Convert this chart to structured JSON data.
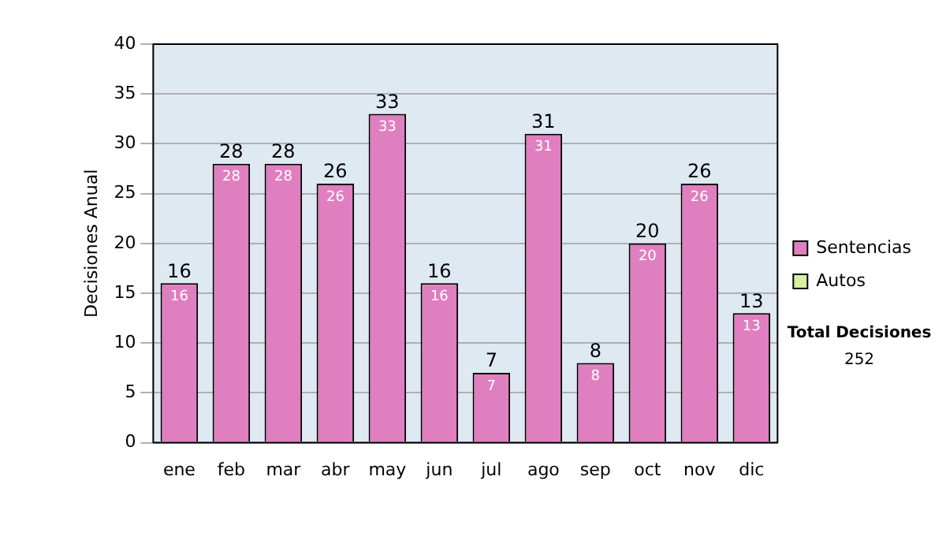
{
  "chart_data": {
    "type": "bar",
    "ylabel": "Decisiones Anual",
    "categories": [
      "ene",
      "feb",
      "mar",
      "abr",
      "may",
      "jun",
      "jul",
      "ago",
      "sep",
      "oct",
      "nov",
      "dic"
    ],
    "series": [
      {
        "name": "Sentencias",
        "color": "#e07fbf",
        "values": [
          16,
          28,
          28,
          26,
          33,
          16,
          7,
          31,
          8,
          20,
          26,
          13
        ],
        "value_labels": [
          "16",
          "28",
          "28",
          "26",
          "33",
          "16",
          "7",
          "31",
          "8",
          "20",
          "26",
          "13"
        ]
      },
      {
        "name": "Autos",
        "color": "#d8f0a0",
        "values": [
          0,
          0,
          0,
          0,
          0,
          0,
          0,
          0,
          0,
          0,
          0,
          0
        ]
      }
    ],
    "stacked": true,
    "totals": [
      "16",
      "28",
      "28",
      "26",
      "33",
      "16",
      "7",
      "31",
      "8",
      "20",
      "26",
      "13"
    ],
    "ylim": [
      0,
      40
    ],
    "yticks": [
      0,
      5,
      10,
      15,
      20,
      25,
      30,
      35,
      40
    ],
    "grid": "y",
    "legend": "right",
    "annotations": [
      "Total Decisiones",
      "252"
    ]
  }
}
